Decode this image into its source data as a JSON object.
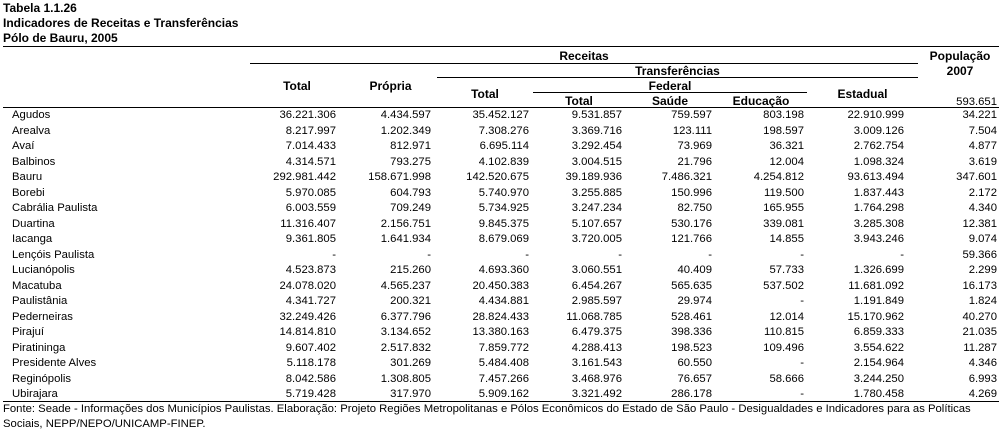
{
  "title": {
    "line1": "Tabela 1.1.26",
    "line2": "Indicadores de Receitas e Transferências",
    "line3": "Pólo de Bauru, 2005"
  },
  "headers": {
    "receitas": "Receitas",
    "populacao_line1": "População",
    "populacao_line2": "2007",
    "total": "Total",
    "propria": "Própria",
    "transferencias": "Transferências",
    "transf_total": "Total",
    "federal": "Federal",
    "fed_total": "Total",
    "saude": "Saúde",
    "educacao": "Educação",
    "estadual": "Estadual",
    "pop_total": "593.651"
  },
  "rows": [
    {
      "municipio": "Agudos",
      "total": "36.221.306",
      "propria": "4.434.597",
      "transf_total": "35.452.127",
      "fed_total": "9.531.857",
      "saude": "759.597",
      "educacao": "803.198",
      "estadual": "22.910.999",
      "populacao": "34.221"
    },
    {
      "municipio": "Arealva",
      "total": "8.217.997",
      "propria": "1.202.349",
      "transf_total": "7.308.276",
      "fed_total": "3.369.716",
      "saude": "123.111",
      "educacao": "198.597",
      "estadual": "3.009.126",
      "populacao": "7.504"
    },
    {
      "municipio": "Avaí",
      "total": "7.014.433",
      "propria": "812.971",
      "transf_total": "6.695.114",
      "fed_total": "3.292.454",
      "saude": "73.969",
      "educacao": "36.321",
      "estadual": "2.762.754",
      "populacao": "4.877"
    },
    {
      "municipio": "Balbinos",
      "total": "4.314.571",
      "propria": "793.275",
      "transf_total": "4.102.839",
      "fed_total": "3.004.515",
      "saude": "21.796",
      "educacao": "12.004",
      "estadual": "1.098.324",
      "populacao": "3.619"
    },
    {
      "municipio": "Bauru",
      "total": "292.981.442",
      "propria": "158.671.998",
      "transf_total": "142.520.675",
      "fed_total": "39.189.936",
      "saude": "7.486.321",
      "educacao": "4.254.812",
      "estadual": "93.613.494",
      "populacao": "347.601"
    },
    {
      "municipio": "Borebi",
      "total": "5.970.085",
      "propria": "604.793",
      "transf_total": "5.740.970",
      "fed_total": "3.255.885",
      "saude": "150.996",
      "educacao": "119.500",
      "estadual": "1.837.443",
      "populacao": "2.172"
    },
    {
      "municipio": "Cabrália Paulista",
      "total": "6.003.559",
      "propria": "709.249",
      "transf_total": "5.734.925",
      "fed_total": "3.247.234",
      "saude": "82.750",
      "educacao": "165.955",
      "estadual": "1.764.298",
      "populacao": "4.340"
    },
    {
      "municipio": "Duartina",
      "total": "11.316.407",
      "propria": "2.156.751",
      "transf_total": "9.845.375",
      "fed_total": "5.107.657",
      "saude": "530.176",
      "educacao": "339.081",
      "estadual": "3.285.308",
      "populacao": "12.381"
    },
    {
      "municipio": "Iacanga",
      "total": "9.361.805",
      "propria": "1.641.934",
      "transf_total": "8.679.069",
      "fed_total": "3.720.005",
      "saude": "121.766",
      "educacao": "14.855",
      "estadual": "3.943.246",
      "populacao": "9.074"
    },
    {
      "municipio": "Lençóis Paulista",
      "total": "-",
      "propria": "-",
      "transf_total": "-",
      "fed_total": "-",
      "saude": "-",
      "educacao": "-",
      "estadual": "-",
      "populacao": "59.366"
    },
    {
      "municipio": "Lucianópolis",
      "total": "4.523.873",
      "propria": "215.260",
      "transf_total": "4.693.360",
      "fed_total": "3.060.551",
      "saude": "40.409",
      "educacao": "57.733",
      "estadual": "1.326.699",
      "populacao": "2.299"
    },
    {
      "municipio": "Macatuba",
      "total": "24.078.020",
      "propria": "4.565.237",
      "transf_total": "20.450.383",
      "fed_total": "6.454.267",
      "saude": "565.635",
      "educacao": "537.502",
      "estadual": "11.681.092",
      "populacao": "16.173"
    },
    {
      "municipio": "Paulistânia",
      "total": "4.341.727",
      "propria": "200.321",
      "transf_total": "4.434.881",
      "fed_total": "2.985.597",
      "saude": "29.974",
      "educacao": "-",
      "estadual": "1.191.849",
      "populacao": "1.824"
    },
    {
      "municipio": "Pederneiras",
      "total": "32.249.426",
      "propria": "6.377.796",
      "transf_total": "28.824.433",
      "fed_total": "11.068.785",
      "saude": "528.461",
      "educacao": "12.014",
      "estadual": "15.170.962",
      "populacao": "40.270"
    },
    {
      "municipio": "Pirajuí",
      "total": "14.814.810",
      "propria": "3.134.652",
      "transf_total": "13.380.163",
      "fed_total": "6.479.375",
      "saude": "398.336",
      "educacao": "110.815",
      "estadual": "6.859.333",
      "populacao": "21.035"
    },
    {
      "municipio": "Piratininga",
      "total": "9.607.402",
      "propria": "2.517.832",
      "transf_total": "7.859.772",
      "fed_total": "4.288.413",
      "saude": "198.523",
      "educacao": "109.496",
      "estadual": "3.554.622",
      "populacao": "11.287"
    },
    {
      "municipio": "Presidente Alves",
      "total": "5.118.178",
      "propria": "301.269",
      "transf_total": "5.484.408",
      "fed_total": "3.161.543",
      "saude": "60.550",
      "educacao": "-",
      "estadual": "2.154.964",
      "populacao": "4.346"
    },
    {
      "municipio": "Reginópolis",
      "total": "8.042.586",
      "propria": "1.308.805",
      "transf_total": "7.457.266",
      "fed_total": "3.468.976",
      "saude": "76.657",
      "educacao": "58.666",
      "estadual": "3.244.250",
      "populacao": "6.993"
    },
    {
      "municipio": "Ubirajara",
      "total": "5.719.428",
      "propria": "317.970",
      "transf_total": "5.909.162",
      "fed_total": "3.321.492",
      "saude": "286.178",
      "educacao": "-",
      "estadual": "1.780.458",
      "populacao": "4.269"
    }
  ],
  "footnote": "Fonte: Seade - Informações dos Municípios Paulistas. Elaboração: Projeto Regiões Metropolitanas e Pólos Econômicos do Estado de São Paulo - Desigualdades e Indicadores para as Políticas Sociais, NEPP/NEPO/UNICAMP-FINEP."
}
